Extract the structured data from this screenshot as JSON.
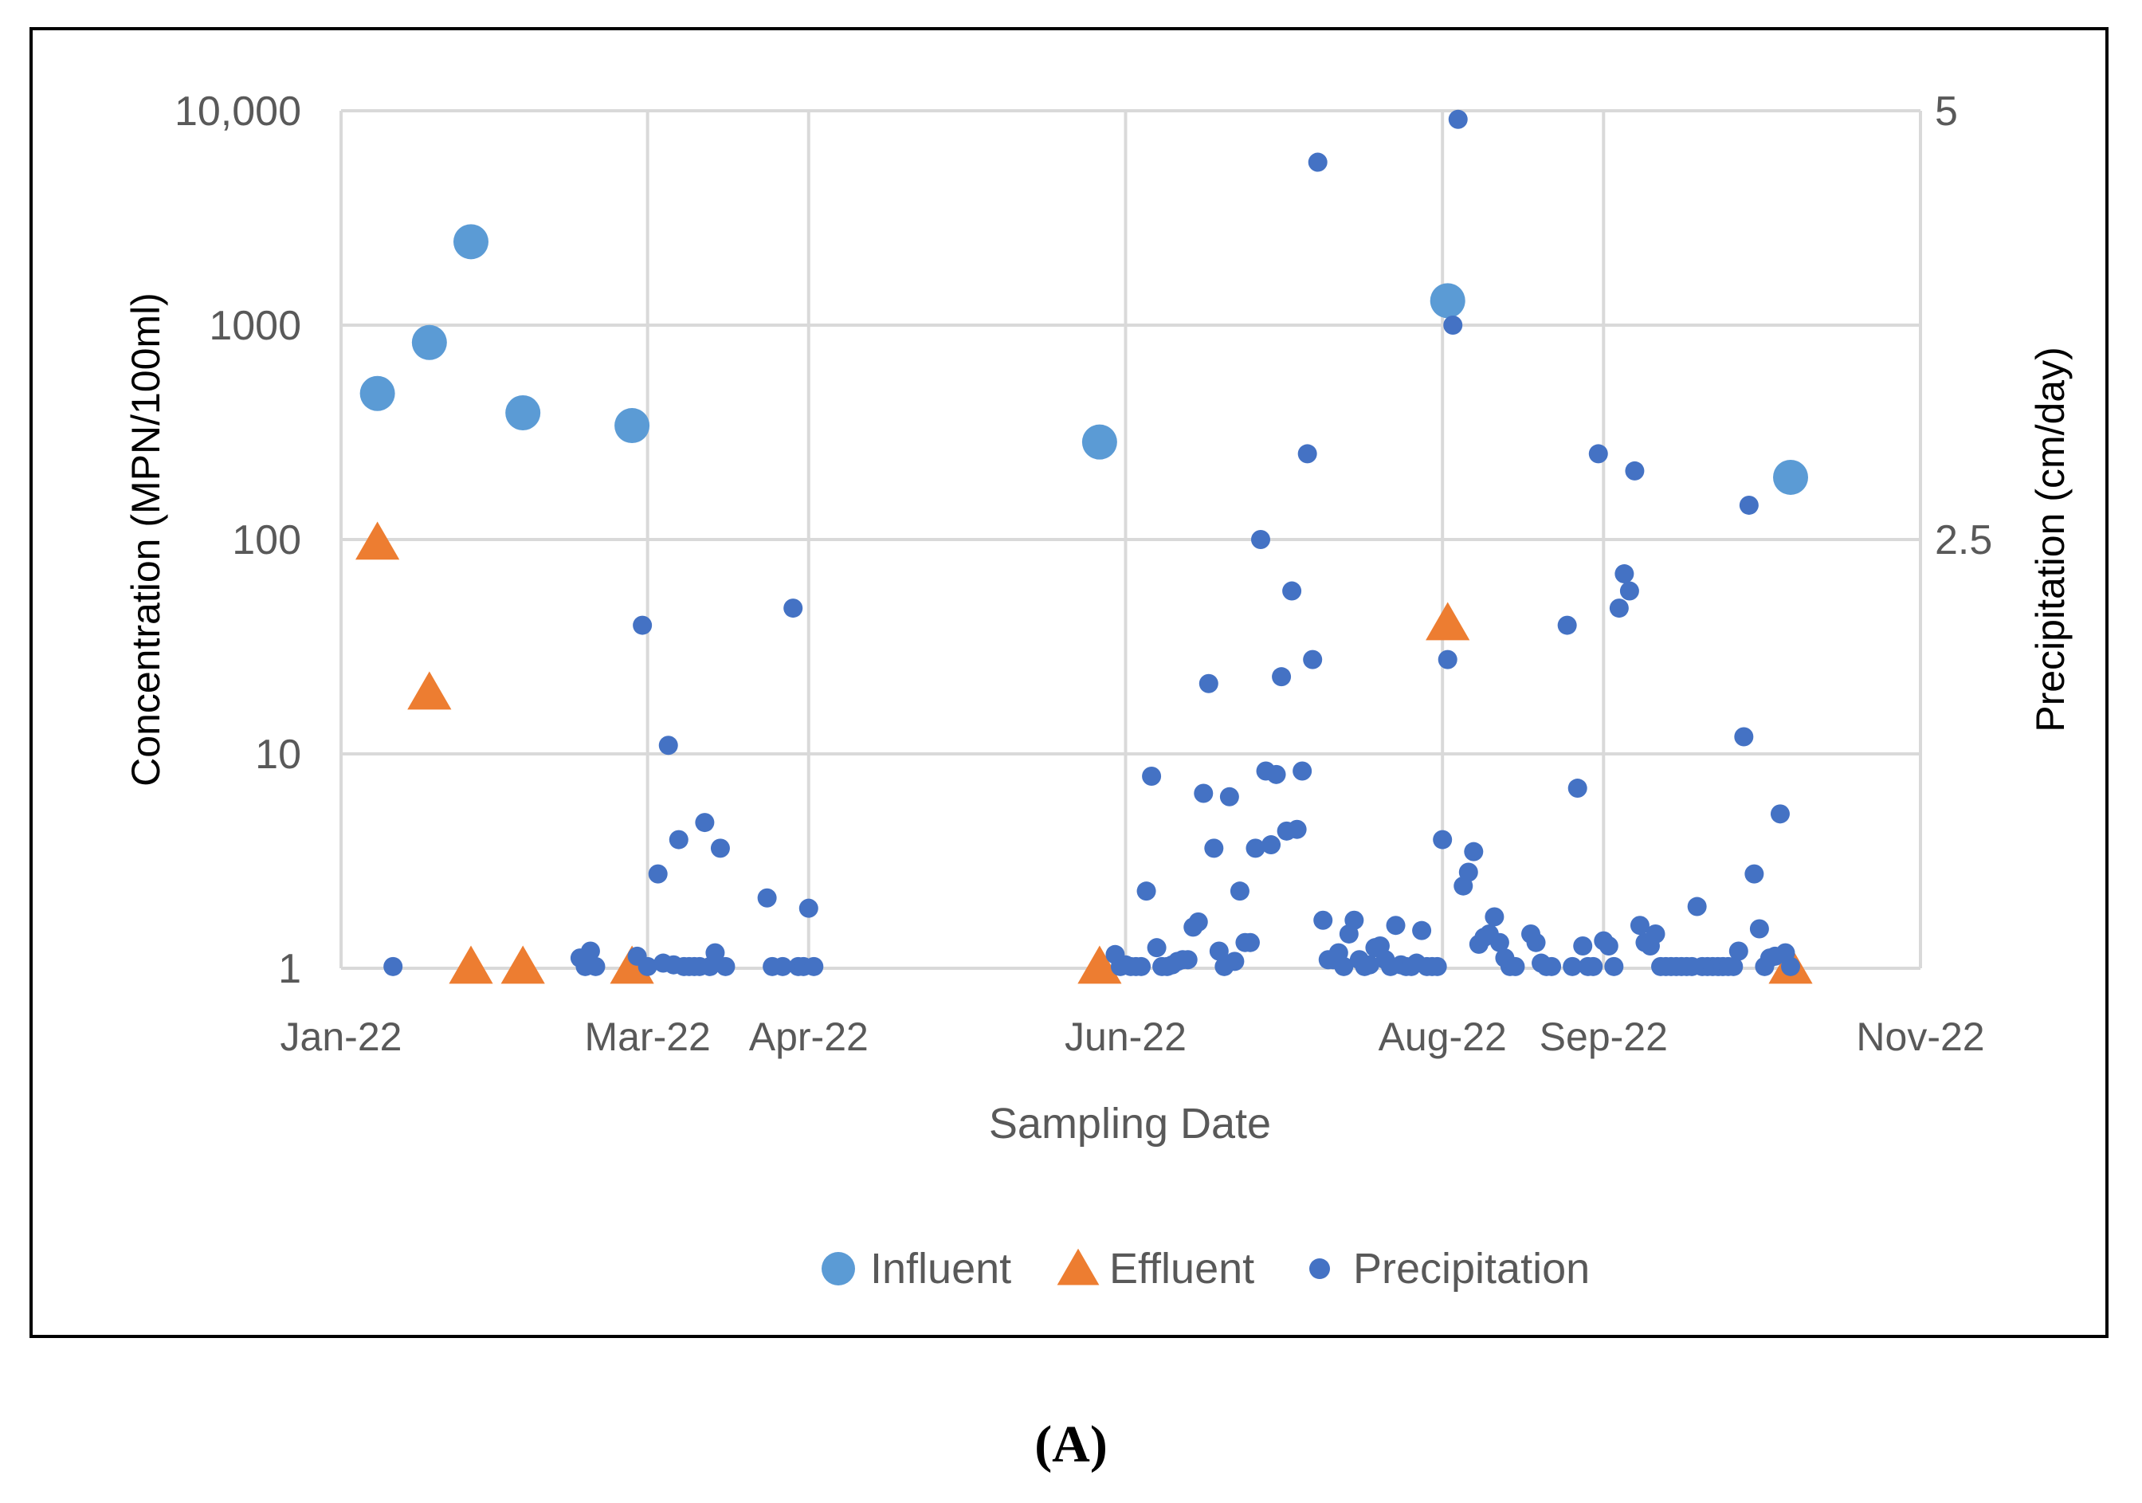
{
  "figure": {
    "panel_label": "(A)"
  },
  "colors": {
    "influent": "#5B9BD5",
    "effluent": "#ED7D31",
    "precipitation": "#4472C4",
    "grid": "#D9D9D9",
    "tick_text": "#595959"
  },
  "chart_data": {
    "type": "scatter",
    "xlabel": "Sampling Date",
    "ylabel": "Concentration (MPN/100ml)",
    "y2label": "Precipitation (cm/day)",
    "x_axis": {
      "type": "date",
      "range": [
        "2022-01-01",
        "2022-11-01"
      ],
      "ticks": [
        {
          "label": "Jan-22",
          "value": "2022-01-01"
        },
        {
          "label": "Mar-22",
          "value": "2022-03-01"
        },
        {
          "label": "Apr-22",
          "value": "2022-04-01"
        },
        {
          "label": "Jun-22",
          "value": "2022-06-01"
        },
        {
          "label": "Aug-22",
          "value": "2022-08-01"
        },
        {
          "label": "Sep-22",
          "value": "2022-09-01"
        },
        {
          "label": "Nov-22",
          "value": "2022-11-01"
        }
      ]
    },
    "y_axis": {
      "scale": "log",
      "range": [
        1,
        10000
      ],
      "ticks": [
        {
          "label": "1",
          "value": 1
        },
        {
          "label": "10",
          "value": 10
        },
        {
          "label": "100",
          "value": 100
        },
        {
          "label": "1000",
          "value": 1000
        },
        {
          "label": "10,000",
          "value": 10000
        }
      ]
    },
    "y2_axis": {
      "scale": "linear",
      "range": [
        0,
        5
      ],
      "ticks": [
        {
          "label": "2.5",
          "value": 2.5
        },
        {
          "label": "5",
          "value": 5
        }
      ]
    },
    "grid": true,
    "legend": {
      "position": "bottom",
      "entries": [
        {
          "label": "Influent",
          "marker": "circle"
        },
        {
          "label": "Effluent",
          "marker": "triangle"
        },
        {
          "label": "Precipitation",
          "marker": "dot"
        }
      ]
    },
    "series": [
      {
        "name": "Influent",
        "axis": "left",
        "marker": "circle",
        "points": [
          [
            "2022-01-08",
            480
          ],
          [
            "2022-01-18",
            830
          ],
          [
            "2022-01-26",
            2450
          ],
          [
            "2022-02-05",
            390
          ],
          [
            "2022-02-26",
            340
          ],
          [
            "2022-05-27",
            285
          ],
          [
            "2022-08-02",
            1300
          ],
          [
            "2022-10-07",
            195
          ]
        ]
      },
      {
        "name": "Effluent",
        "axis": "left",
        "marker": "triangle",
        "points": [
          [
            "2022-01-08",
            95
          ],
          [
            "2022-01-18",
            19
          ],
          [
            "2022-01-26",
            1
          ],
          [
            "2022-02-05",
            1
          ],
          [
            "2022-02-26",
            1
          ],
          [
            "2022-05-27",
            1
          ],
          [
            "2022-08-02",
            40
          ],
          [
            "2022-10-07",
            1
          ]
        ]
      },
      {
        "name": "Precipitation",
        "axis": "right",
        "marker": "dot",
        "points": [
          [
            "2022-01-11",
            0.01
          ],
          [
            "2022-02-16",
            0.06
          ],
          [
            "2022-02-17",
            0.01
          ],
          [
            "2022-02-18",
            0.1
          ],
          [
            "2022-02-19",
            0.01
          ],
          [
            "2022-02-27",
            0.07
          ],
          [
            "2022-02-28",
            2.0
          ],
          [
            "2022-03-01",
            0.01
          ],
          [
            "2022-03-03",
            0.55
          ],
          [
            "2022-03-04",
            0.03
          ],
          [
            "2022-03-05",
            1.3
          ],
          [
            "2022-03-06",
            0.02
          ],
          [
            "2022-03-07",
            0.75
          ],
          [
            "2022-03-08",
            0.01
          ],
          [
            "2022-03-09",
            0.01
          ],
          [
            "2022-03-10",
            0.01
          ],
          [
            "2022-03-11",
            0.01
          ],
          [
            "2022-03-12",
            0.85
          ],
          [
            "2022-03-13",
            0.01
          ],
          [
            "2022-03-14",
            0.09
          ],
          [
            "2022-03-15",
            0.7
          ],
          [
            "2022-03-16",
            0.01
          ],
          [
            "2022-03-24",
            0.41
          ],
          [
            "2022-03-25",
            0.01
          ],
          [
            "2022-03-27",
            0.01
          ],
          [
            "2022-03-29",
            2.1
          ],
          [
            "2022-03-30",
            0.01
          ],
          [
            "2022-03-31",
            0.01
          ],
          [
            "2022-04-01",
            0.35
          ],
          [
            "2022-04-02",
            0.01
          ],
          [
            "2022-05-30",
            0.08
          ],
          [
            "2022-05-31",
            0.01
          ],
          [
            "2022-06-01",
            0.02
          ],
          [
            "2022-06-02",
            0.01
          ],
          [
            "2022-06-03",
            0.01
          ],
          [
            "2022-06-04",
            0.01
          ],
          [
            "2022-06-05",
            0.45
          ],
          [
            "2022-06-06",
            1.12
          ],
          [
            "2022-06-07",
            0.12
          ],
          [
            "2022-06-08",
            0.01
          ],
          [
            "2022-06-09",
            0.01
          ],
          [
            "2022-06-10",
            0.02
          ],
          [
            "2022-06-11",
            0.04
          ],
          [
            "2022-06-12",
            0.05
          ],
          [
            "2022-06-13",
            0.05
          ],
          [
            "2022-06-14",
            0.24
          ],
          [
            "2022-06-15",
            0.27
          ],
          [
            "2022-06-16",
            1.02
          ],
          [
            "2022-06-17",
            1.66
          ],
          [
            "2022-06-18",
            0.7
          ],
          [
            "2022-06-19",
            0.1
          ],
          [
            "2022-06-20",
            0.01
          ],
          [
            "2022-06-21",
            1.0
          ],
          [
            "2022-06-22",
            0.04
          ],
          [
            "2022-06-23",
            0.45
          ],
          [
            "2022-06-24",
            0.15
          ],
          [
            "2022-06-25",
            0.15
          ],
          [
            "2022-06-26",
            0.7
          ],
          [
            "2022-06-27",
            2.5
          ],
          [
            "2022-06-28",
            1.15
          ],
          [
            "2022-06-29",
            0.72
          ],
          [
            "2022-06-30",
            1.13
          ],
          [
            "2022-07-01",
            1.7
          ],
          [
            "2022-07-02",
            0.8
          ],
          [
            "2022-07-03",
            2.2
          ],
          [
            "2022-07-04",
            0.81
          ],
          [
            "2022-07-05",
            1.15
          ],
          [
            "2022-07-06",
            3.0
          ],
          [
            "2022-07-07",
            1.8
          ],
          [
            "2022-07-08",
            4.7
          ],
          [
            "2022-07-09",
            0.28
          ],
          [
            "2022-07-10",
            0.05
          ],
          [
            "2022-07-11",
            0.05
          ],
          [
            "2022-07-12",
            0.09
          ],
          [
            "2022-07-13",
            0.01
          ],
          [
            "2022-07-14",
            0.2
          ],
          [
            "2022-07-15",
            0.28
          ],
          [
            "2022-07-16",
            0.05
          ],
          [
            "2022-07-17",
            0.01
          ],
          [
            "2022-07-18",
            0.02
          ],
          [
            "2022-07-19",
            0.12
          ],
          [
            "2022-07-20",
            0.13
          ],
          [
            "2022-07-21",
            0.05
          ],
          [
            "2022-07-22",
            0.01
          ],
          [
            "2022-07-23",
            0.25
          ],
          [
            "2022-07-24",
            0.02
          ],
          [
            "2022-07-25",
            0.01
          ],
          [
            "2022-07-26",
            0.01
          ],
          [
            "2022-07-27",
            0.03
          ],
          [
            "2022-07-28",
            0.22
          ],
          [
            "2022-07-29",
            0.01
          ],
          [
            "2022-07-30",
            0.01
          ],
          [
            "2022-07-31",
            0.01
          ],
          [
            "2022-08-01",
            0.75
          ],
          [
            "2022-08-02",
            1.8
          ],
          [
            "2022-08-03",
            3.75
          ],
          [
            "2022-08-04",
            4.95
          ],
          [
            "2022-08-05",
            0.48
          ],
          [
            "2022-08-06",
            0.56
          ],
          [
            "2022-08-07",
            0.68
          ],
          [
            "2022-08-08",
            0.14
          ],
          [
            "2022-08-09",
            0.18
          ],
          [
            "2022-08-10",
            0.2
          ],
          [
            "2022-08-11",
            0.3
          ],
          [
            "2022-08-12",
            0.15
          ],
          [
            "2022-08-13",
            0.06
          ],
          [
            "2022-08-14",
            0.01
          ],
          [
            "2022-08-15",
            0.01
          ],
          [
            "2022-08-18",
            0.2
          ],
          [
            "2022-08-19",
            0.15
          ],
          [
            "2022-08-20",
            0.03
          ],
          [
            "2022-08-21",
            0.01
          ],
          [
            "2022-08-22",
            0.01
          ],
          [
            "2022-08-25",
            2.0
          ],
          [
            "2022-08-26",
            0.01
          ],
          [
            "2022-08-27",
            1.05
          ],
          [
            "2022-08-28",
            0.13
          ],
          [
            "2022-08-29",
            0.01
          ],
          [
            "2022-08-30",
            0.01
          ],
          [
            "2022-08-31",
            3.0
          ],
          [
            "2022-09-01",
            0.16
          ],
          [
            "2022-09-02",
            0.13
          ],
          [
            "2022-09-03",
            0.01
          ],
          [
            "2022-09-04",
            2.1
          ],
          [
            "2022-09-05",
            2.3
          ],
          [
            "2022-09-06",
            2.2
          ],
          [
            "2022-09-07",
            2.9
          ],
          [
            "2022-09-08",
            0.25
          ],
          [
            "2022-09-09",
            0.15
          ],
          [
            "2022-09-10",
            0.13
          ],
          [
            "2022-09-11",
            0.2
          ],
          [
            "2022-09-12",
            0.01
          ],
          [
            "2022-09-13",
            0.01
          ],
          [
            "2022-09-14",
            0.01
          ],
          [
            "2022-09-15",
            0.01
          ],
          [
            "2022-09-16",
            0.01
          ],
          [
            "2022-09-17",
            0.01
          ],
          [
            "2022-09-18",
            0.01
          ],
          [
            "2022-09-19",
            0.36
          ],
          [
            "2022-09-20",
            0.01
          ],
          [
            "2022-09-21",
            0.01
          ],
          [
            "2022-09-22",
            0.01
          ],
          [
            "2022-09-23",
            0.01
          ],
          [
            "2022-09-24",
            0.01
          ],
          [
            "2022-09-25",
            0.01
          ],
          [
            "2022-09-26",
            0.01
          ],
          [
            "2022-09-27",
            0.1
          ],
          [
            "2022-09-28",
            1.35
          ],
          [
            "2022-09-29",
            2.7
          ],
          [
            "2022-09-30",
            0.55
          ],
          [
            "2022-10-01",
            0.23
          ],
          [
            "2022-10-02",
            0.01
          ],
          [
            "2022-10-03",
            0.06
          ],
          [
            "2022-10-04",
            0.07
          ],
          [
            "2022-10-05",
            0.9
          ],
          [
            "2022-10-06",
            0.09
          ],
          [
            "2022-10-07",
            0.01
          ]
        ]
      }
    ]
  }
}
